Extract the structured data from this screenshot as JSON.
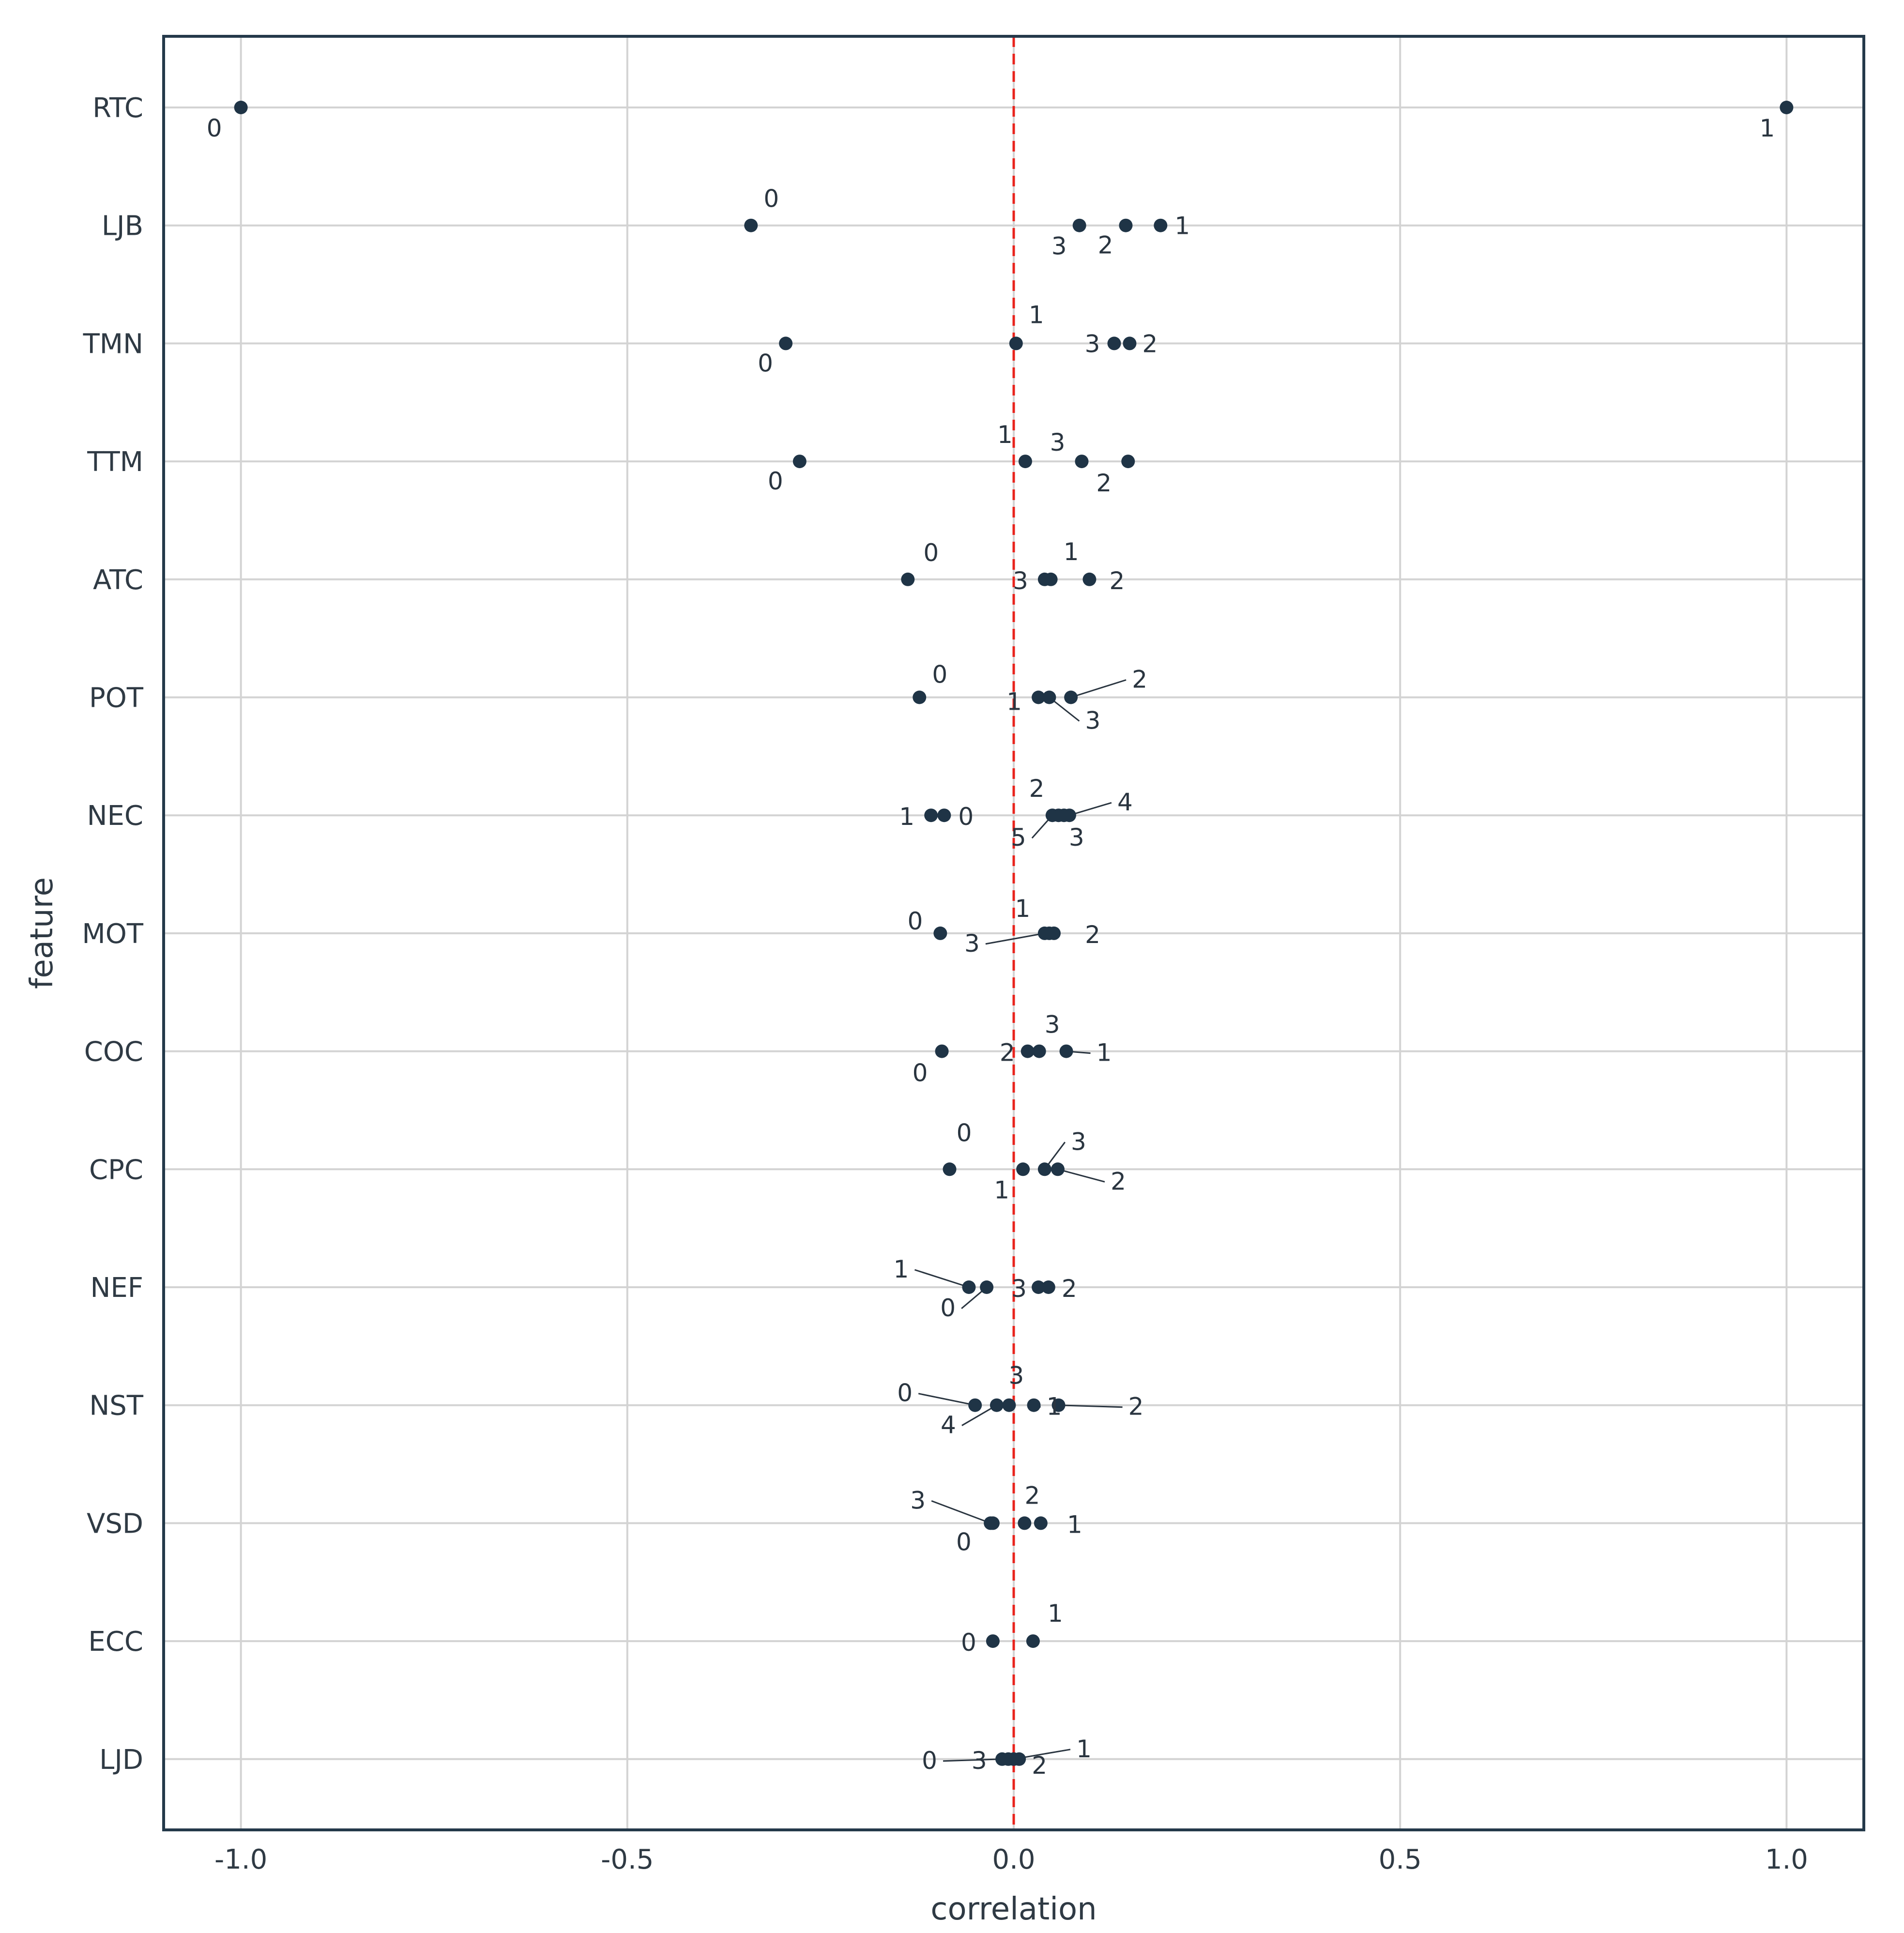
{
  "chart_data": {
    "type": "scatter",
    "xlabel": "correlation",
    "ylabel": "feature",
    "xlim": [
      -1.1,
      1.1
    ],
    "x_ticks": [
      -1.0,
      -0.5,
      0.0,
      0.5,
      1.0
    ],
    "x_tick_labels": [
      "-1.0",
      "-0.5",
      "0.0",
      "0.5",
      "1.0"
    ],
    "grid": true,
    "reference_line": {
      "x": 0.0,
      "style": "dashed",
      "color": "#e8231c"
    },
    "point_color": "#1f3446",
    "categories": [
      "RTC",
      "LJB",
      "TMN",
      "TTM",
      "ATC",
      "POT",
      "NEC",
      "MOT",
      "COC",
      "CPC",
      "NEF",
      "NST",
      "VSD",
      "ECC",
      "LJD"
    ],
    "points": [
      {
        "feature": "RTC",
        "label": "0",
        "x": -1.0
      },
      {
        "feature": "RTC",
        "label": "1",
        "x": 1.0
      },
      {
        "feature": "LJB",
        "label": "0",
        "x": -0.34
      },
      {
        "feature": "LJB",
        "label": "3",
        "x": 0.085
      },
      {
        "feature": "LJB",
        "label": "2",
        "x": 0.145
      },
      {
        "feature": "LJB",
        "label": "1",
        "x": 0.19
      },
      {
        "feature": "TMN",
        "label": "0",
        "x": -0.295
      },
      {
        "feature": "TMN",
        "label": "1",
        "x": 0.003
      },
      {
        "feature": "TMN",
        "label": "3",
        "x": 0.13
      },
      {
        "feature": "TMN",
        "label": "2",
        "x": 0.15
      },
      {
        "feature": "TTM",
        "label": "0",
        "x": -0.277
      },
      {
        "feature": "TTM",
        "label": "1",
        "x": 0.015
      },
      {
        "feature": "TTM",
        "label": "3",
        "x": 0.088
      },
      {
        "feature": "TTM",
        "label": "2",
        "x": 0.148
      },
      {
        "feature": "ATC",
        "label": "0",
        "x": -0.137
      },
      {
        "feature": "ATC",
        "label": "3",
        "x": 0.04
      },
      {
        "feature": "ATC",
        "label": "1",
        "x": 0.048
      },
      {
        "feature": "ATC",
        "label": "2",
        "x": 0.098
      },
      {
        "feature": "POT",
        "label": "0",
        "x": -0.122
      },
      {
        "feature": "POT",
        "label": "1",
        "x": 0.032
      },
      {
        "feature": "POT",
        "label": "3",
        "x": 0.046
      },
      {
        "feature": "POT",
        "label": "2",
        "x": 0.074
      },
      {
        "feature": "NEC",
        "label": "1",
        "x": -0.107
      },
      {
        "feature": "NEC",
        "label": "0",
        "x": -0.09
      },
      {
        "feature": "NEC",
        "label": "5",
        "x": 0.05
      },
      {
        "feature": "NEC",
        "label": "2",
        "x": 0.058
      },
      {
        "feature": "NEC",
        "label": "3",
        "x": 0.065
      },
      {
        "feature": "NEC",
        "label": "4",
        "x": 0.072
      },
      {
        "feature": "MOT",
        "label": "0",
        "x": -0.095
      },
      {
        "feature": "MOT",
        "label": "3",
        "x": 0.04
      },
      {
        "feature": "MOT",
        "label": "1",
        "x": 0.046
      },
      {
        "feature": "MOT",
        "label": "2",
        "x": 0.052
      },
      {
        "feature": "COC",
        "label": "0",
        "x": -0.093
      },
      {
        "feature": "COC",
        "label": "2",
        "x": 0.018
      },
      {
        "feature": "COC",
        "label": "3",
        "x": 0.033
      },
      {
        "feature": "COC",
        "label": "1",
        "x": 0.068
      },
      {
        "feature": "CPC",
        "label": "0",
        "x": -0.083
      },
      {
        "feature": "CPC",
        "label": "1",
        "x": 0.012
      },
      {
        "feature": "CPC",
        "label": "3",
        "x": 0.04
      },
      {
        "feature": "CPC",
        "label": "2",
        "x": 0.057
      },
      {
        "feature": "NEF",
        "label": "1",
        "x": -0.058
      },
      {
        "feature": "NEF",
        "label": "0",
        "x": -0.035
      },
      {
        "feature": "NEF",
        "label": "3",
        "x": 0.032
      },
      {
        "feature": "NEF",
        "label": "2",
        "x": 0.045
      },
      {
        "feature": "NST",
        "label": "0",
        "x": -0.05
      },
      {
        "feature": "NST",
        "label": "4",
        "x": -0.022
      },
      {
        "feature": "NST",
        "label": "3",
        "x": -0.006
      },
      {
        "feature": "NST",
        "label": "1",
        "x": 0.026
      },
      {
        "feature": "NST",
        "label": "2",
        "x": 0.058
      },
      {
        "feature": "VSD",
        "label": "3",
        "x": -0.03
      },
      {
        "feature": "VSD",
        "label": "0",
        "x": -0.027
      },
      {
        "feature": "VSD",
        "label": "2",
        "x": 0.014
      },
      {
        "feature": "VSD",
        "label": "1",
        "x": 0.035
      },
      {
        "feature": "ECC",
        "label": "0",
        "x": -0.027
      },
      {
        "feature": "ECC",
        "label": "1",
        "x": 0.025
      },
      {
        "feature": "LJD",
        "label": "0",
        "x": -0.015
      },
      {
        "feature": "LJD",
        "label": "3",
        "x": -0.007
      },
      {
        "feature": "LJD",
        "label": "1",
        "x": 0.0
      },
      {
        "feature": "LJD",
        "label": "2",
        "x": 0.007
      }
    ]
  }
}
